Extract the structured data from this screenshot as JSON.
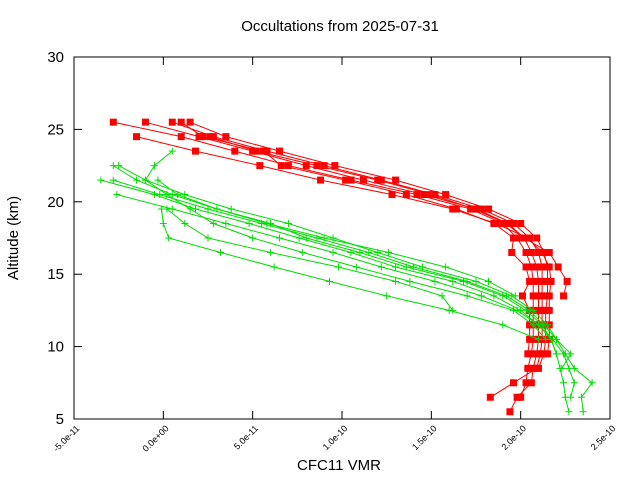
{
  "chart_data": {
    "type": "line",
    "title": "Occultations from 2025-07-31",
    "xlabel": "CFC11 VMR",
    "ylabel": "Altitude (km)",
    "xlim": [
      -5e-11,
      2.5e-10
    ],
    "ylim": [
      5,
      30
    ],
    "x_ticks": [
      -5e-11,
      0,
      5e-11,
      1e-10,
      1.5e-10,
      2e-10,
      2.5e-10
    ],
    "x_tick_labels": [
      "-5.0e-11",
      "0.0e+00",
      "5.0e-11",
      "1.0e-10",
      "1.5e-10",
      "2.0e-10",
      "2.5e-10"
    ],
    "y_ticks": [
      5,
      10,
      15,
      20,
      25,
      30
    ],
    "y_tick_labels": [
      "5",
      "10",
      "15",
      "20",
      "25",
      "30"
    ],
    "grid": false,
    "series": [
      {
        "color": "#ff0000",
        "marker": "square",
        "profiles": [
          {
            "y": [
              25.5,
              24.5,
              23.5,
              22.5,
              21.5,
              20.5,
              19.5,
              18.5,
              17.5,
              16.5,
              15.5,
              14.5,
              13.5,
              12.5,
              11.5,
              10.5,
              9.5,
              8.5,
              7.5,
              6.5
            ],
            "x": [
              -2.8e-11,
              1e-11,
              4e-11,
              7e-11,
              1.05e-10,
              1.42e-10,
              1.72e-10,
              1.9e-10,
              1.98e-10,
              2.03e-10,
              2.06e-10,
              2.07e-10,
              2.07e-10,
              2.07e-10,
              2.07e-10,
              2.07e-10,
              2.06e-10,
              2.04e-10,
              2.03e-10,
              2e-10
            ]
          },
          {
            "y": [
              25.5,
              24.5,
              23.5,
              22.5,
              21.5,
              20.5,
              19.5,
              18.5,
              17.5,
              16.5,
              15.5,
              14.5,
              13.5,
              12.5,
              11.5,
              10.5,
              9.5,
              8.5,
              7.5,
              6.5,
              5.5
            ],
            "x": [
              -1e-11,
              2e-11,
              5e-11,
              8e-11,
              1.12e-10,
              1.46e-10,
              1.75e-10,
              1.93e-10,
              2.02e-10,
              2.06e-10,
              2.09e-10,
              2.1e-10,
              2.1e-10,
              2.1e-10,
              2.1e-10,
              2.1e-10,
              2.09e-10,
              2.07e-10,
              2.06e-10,
              1.98e-10,
              1.94e-10
            ]
          },
          {
            "y": [
              25.5,
              24.5,
              23.5,
              22.5,
              21.5,
              20.5,
              19.5,
              18.5,
              17.5,
              16.5,
              15.5,
              14.5,
              13.5,
              12.5,
              11.5,
              10.5,
              9.5,
              8.5,
              7.5,
              6.5
            ],
            "x": [
              5e-12,
              2.8e-11,
              5.8e-11,
              9e-11,
              1.22e-10,
              1.52e-10,
              1.78e-10,
              1.96e-10,
              2.05e-10,
              2.1e-10,
              2.12e-10,
              2.12e-10,
              2.12e-10,
              2.12e-10,
              2.12e-10,
              2.12e-10,
              2.11e-10,
              2.09e-10,
              1.96e-10,
              1.83e-10
            ]
          },
          {
            "y": [
              25.5,
              24.5,
              23.5,
              22.5,
              21.5,
              20.5,
              19.5,
              18.5,
              17.5,
              16.5,
              15.5,
              14.5,
              13.5,
              12.5,
              11.5,
              10.5,
              9.5,
              8.5
            ],
            "x": [
              1.5e-11,
              3.5e-11,
              6.5e-11,
              9.6e-11,
              1.3e-10,
              1.58e-10,
              1.82e-10,
              2e-10,
              2.09e-10,
              2.13e-10,
              2.15e-10,
              2.15e-10,
              2.15e-10,
              2.14e-10,
              2.14e-10,
              2.14e-10,
              2.13e-10,
              2.1e-10
            ]
          },
          {
            "y": [
              24.5,
              23.5,
              22.5,
              21.5,
              20.5,
              19.5,
              18.5,
              17.5,
              16.5,
              15.5,
              14.5,
              13.5,
              12.5,
              11.5,
              10.5,
              9.5
            ],
            "x": [
              -1.5e-11,
              1.8e-11,
              5.4e-11,
              8.8e-11,
              1.28e-10,
              1.62e-10,
              1.86e-10,
              2.04e-10,
              2.12e-10,
              2.16e-10,
              2.17e-10,
              2.16e-10,
              2.16e-10,
              2.16e-10,
              2.16e-10,
              2.15e-10
            ]
          },
          {
            "y": [
              24.5,
              23.5,
              22.5,
              21.5,
              20.5,
              19.5,
              18.5,
              17.5,
              16.5,
              15.5,
              14.5,
              13.5
            ],
            "x": [
              2.6e-11,
              5.2e-11,
              8.6e-11,
              1.2e-10,
              1.5e-10,
              1.74e-10,
              1.92e-10,
              2.02e-10,
              2.16e-10,
              2.21e-10,
              2.26e-10,
              2.24e-10
            ]
          },
          {
            "y": [
              25.5,
              24.5,
              23.5,
              22.5,
              21.5,
              20.5,
              19.5,
              18.5,
              17.5,
              16.5,
              15.5,
              14.5,
              13.5,
              12.5,
              11.5,
              10.5,
              9.5
            ],
            "x": [
              1e-11,
              2.2e-11,
              5.6e-11,
              6.6e-11,
              1.02e-10,
              1.36e-10,
              1.64e-10,
              1.85e-10,
              1.96e-10,
              1.95e-10,
              2.03e-10,
              2.05e-10,
              2.01e-10,
              2.05e-10,
              2.05e-10,
              2.05e-10,
              2.04e-10
            ]
          }
        ]
      },
      {
        "color": "#00dd00",
        "marker": "plus",
        "profiles": [
          {
            "y": [
              22.5,
              21.5,
              20.5,
              19.5,
              18.5,
              17.5,
              16.5,
              15.5,
              14.5,
              13.5,
              12.5,
              11.5,
              10.5,
              9.5,
              8.5,
              7.5,
              6.5,
              5.5
            ],
            "x": [
              -2.8e-11,
              -1.5e-11,
              5e-12,
              3e-11,
              6e-11,
              8e-11,
              1.1e-10,
              1.36e-10,
              1.68e-10,
              1.9e-10,
              2.03e-10,
              2.12e-10,
              2.17e-10,
              2.2e-10,
              2.22e-10,
              2.24e-10,
              2.25e-10,
              2.27e-10
            ]
          },
          {
            "y": [
              22.5,
              21.5,
              20.5,
              19.5,
              18.5,
              17.5,
              16.5,
              15.5,
              14.5,
              13.5,
              12.5,
              11.5,
              10.5,
              9.5,
              8.5,
              7.5,
              6.5,
              5.5
            ],
            "x": [
              -2.5e-11,
              -1e-11,
              1.2e-11,
              3.8e-11,
              7e-11,
              9.5e-11,
              1.2e-10,
              1.45e-10,
              1.75e-10,
              1.95e-10,
              2.07e-10,
              2.15e-10,
              2.2e-10,
              2.25e-10,
              2.3e-10,
              2.4e-10,
              2.34e-10,
              2.35e-10
            ]
          },
          {
            "y": [
              21.5,
              20.5,
              19.5,
              18.5,
              17.5,
              16.5,
              15.5,
              14.5,
              13.5,
              12.5,
              11.5,
              10.5,
              9.5,
              8.5,
              7.5,
              6.5
            ],
            "x": [
              -3.5e-11,
              -5e-12,
              1.8e-11,
              4.8e-11,
              7.6e-11,
              1.05e-10,
              1.3e-10,
              1.62e-10,
              1.85e-10,
              2e-10,
              2.1e-10,
              2.18e-10,
              2.24e-10,
              2.27e-10,
              2.3e-10,
              2.28e-10
            ]
          },
          {
            "y": [
              21.5,
              20.5,
              19.5,
              18.5,
              17.5,
              16.5,
              15.5,
              14.5,
              13.5,
              12.5,
              11.5,
              10.5,
              9.5,
              8.5
            ],
            "x": [
              -2.8e-11,
              -2e-12,
              2.5e-11,
              5.5e-11,
              8.6e-11,
              1.15e-10,
              1.4e-10,
              1.7e-10,
              1.92e-10,
              2.05e-10,
              2.13e-10,
              2.2e-10,
              2.28e-10,
              2.23e-10
            ]
          },
          {
            "y": [
              20.5,
              19.5,
              18.5,
              17.5,
              16.5,
              15.5,
              14.5,
              13.5,
              12.5,
              11.5,
              10.5,
              9.5
            ],
            "x": [
              -2.6e-11,
              5e-12,
              3.5e-11,
              6.5e-11,
              9.5e-11,
              1.22e-10,
              1.52e-10,
              1.78e-10,
              1.98e-10,
              2.1e-10,
              2.17e-10,
              2.2e-10
            ]
          },
          {
            "y": [
              21.5,
              20.5,
              19.5,
              18.5,
              17.5,
              16.5,
              15.5,
              14.5,
              13.5
            ],
            "x": [
              -3e-12,
              8e-12,
              3e-11,
              5.8e-11,
              9e-11,
              1.26e-10,
              1.58e-10,
              1.82e-10,
              1.97e-10
            ]
          },
          {
            "y": [
              23.5,
              22.5,
              21.5,
              20.5,
              19.5,
              18.5,
              17.5,
              16.5,
              15.5,
              14.5,
              13.5,
              12.5,
              11.5,
              10.5
            ],
            "x": [
              5e-12,
              -5e-12,
              -1e-11,
              2e-12,
              1.5e-11,
              2.8e-11,
              5e-11,
              7.8e-11,
              1.08e-10,
              1.38e-10,
              1.7e-10,
              1.96e-10,
              2.07e-10,
              2.14e-10
            ]
          },
          {
            "y": [
              19.5,
              18.5,
              17.5,
              16.5,
              15.5,
              14.5,
              13.5,
              12.5,
              11.5,
              10.5
            ],
            "x": [
              -1e-12,
              0,
              3e-12,
              3.2e-11,
              6.2e-11,
              9.3e-11,
              1.25e-10,
              1.6e-10,
              1.9e-10,
              2.1e-10
            ]
          },
          {
            "y": [
              19.5,
              18.5,
              17.5,
              16.5,
              15.5,
              14.5,
              13.5,
              12.5
            ],
            "x": [
              2e-12,
              1.2e-11,
              2.5e-11,
              6e-11,
              9.8e-11,
              1.3e-10,
              1.56e-10,
              1.62e-10
            ]
          }
        ]
      }
    ]
  }
}
